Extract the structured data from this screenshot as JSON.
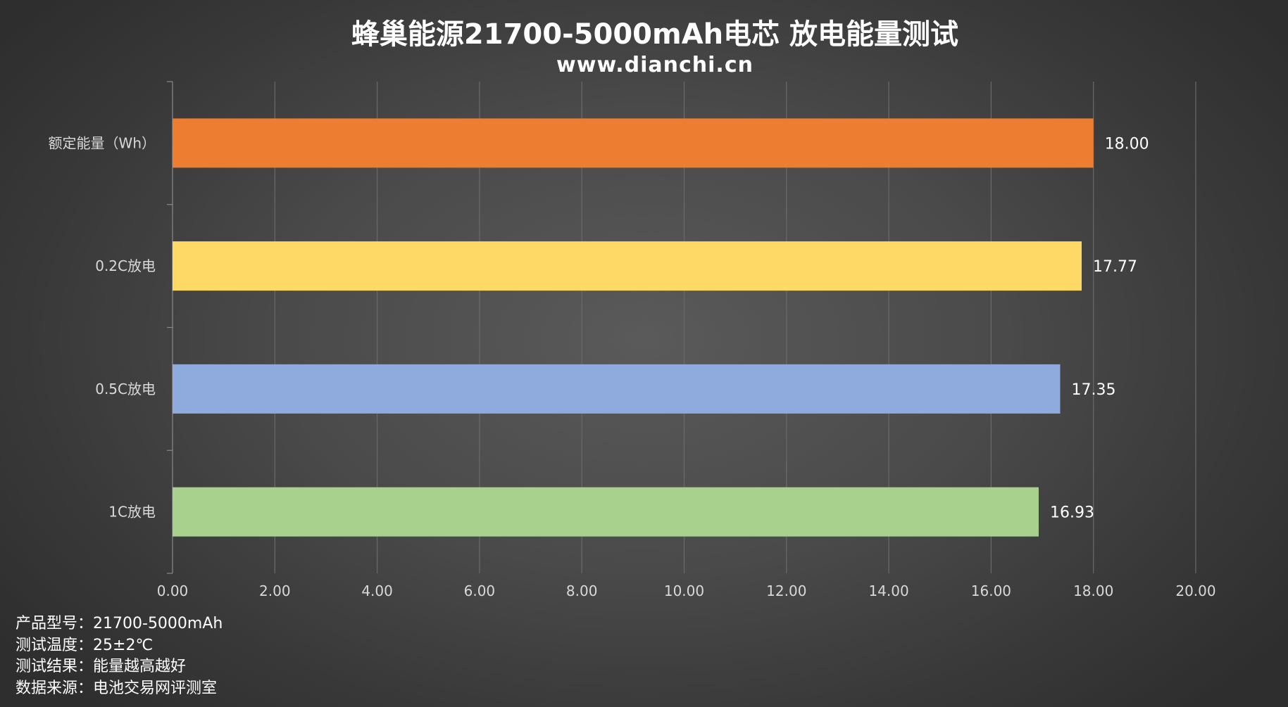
{
  "chart_data": {
    "type": "bar",
    "orientation": "horizontal",
    "title": "蜂巢能源21700-5000mAh电芯 放电能量测试",
    "subtitle": "www.dianchi.cn",
    "categories": [
      "额定能量（Wh）",
      "0.2C放电",
      "0.5C放电",
      "1C放电"
    ],
    "values": [
      18.0,
      17.77,
      17.35,
      16.93
    ],
    "value_labels": [
      "18.00",
      "17.77",
      "17.35",
      "16.93"
    ],
    "colors": [
      "#ED7D31",
      "#FFD966",
      "#8FAADC",
      "#A9D18E"
    ],
    "xlim": [
      0,
      20
    ],
    "xticks": [
      "0.00",
      "2.00",
      "4.00",
      "6.00",
      "8.00",
      "10.00",
      "12.00",
      "14.00",
      "16.00",
      "18.00",
      "20.00"
    ],
    "grid": true,
    "legend": "none"
  },
  "notes": [
    {
      "label": "产品型号：",
      "value": "21700-5000mAh"
    },
    {
      "label": "测试温度：",
      "value": "25±2℃"
    },
    {
      "label": "测试结果：",
      "value": "能量越高越好"
    },
    {
      "label": "数据来源：",
      "value": "电池交易网评测室"
    }
  ]
}
